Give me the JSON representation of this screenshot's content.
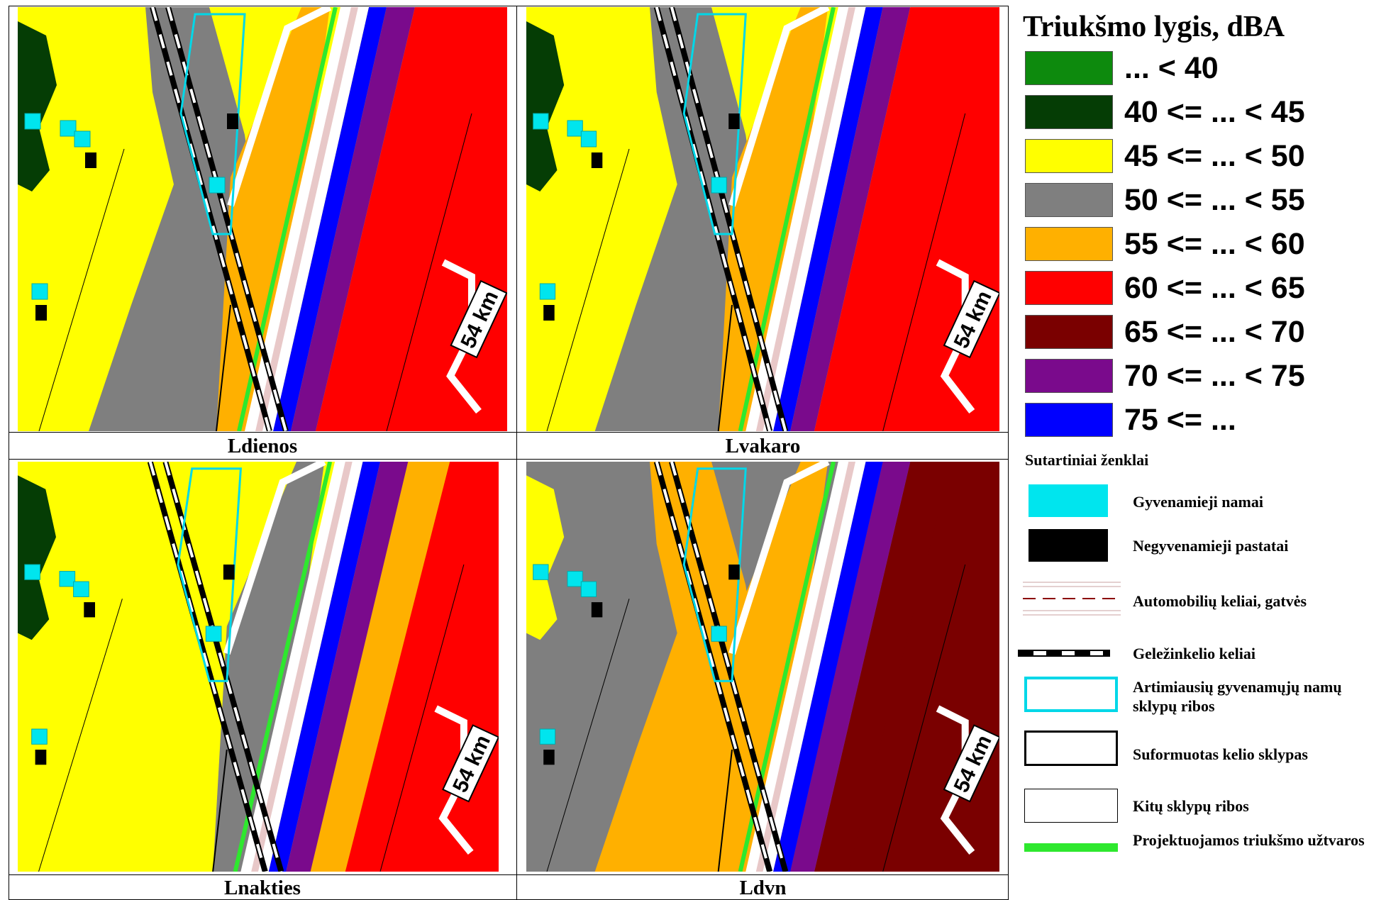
{
  "legend": {
    "title": "Triukšmo lygis, dBA",
    "classes": [
      {
        "label": " ... < 40",
        "color": "#0d8a0d"
      },
      {
        "label": "40 <= ... < 45",
        "color": "#053d05"
      },
      {
        "label": "45 <= ... < 50",
        "color": "#ffff00"
      },
      {
        "label": "50 <= ... < 55",
        "color": "#7f7f7f"
      },
      {
        "label": "55 <= ... < 60",
        "color": "#ffb000"
      },
      {
        "label": "60 <= ... < 65",
        "color": "#ff0000"
      },
      {
        "label": "65 <= ... < 70",
        "color": "#7a0000"
      },
      {
        "label": "70 <= ... < 75",
        "color": "#7a0a8c"
      },
      {
        "label": "75 <= ...",
        "color": "#0000ff"
      }
    ]
  },
  "signs": {
    "title": "Sutartiniai ženklai",
    "items": [
      {
        "label": "Gyvenamieji namai",
        "icon": "residential-house-symbol"
      },
      {
        "label": "Negyvenamieji pastatai",
        "icon": "non-residential-building-symbol"
      },
      {
        "label": "Automobilių keliai, gatvės",
        "icon": "road-symbol"
      },
      {
        "label": "Geležinkelio keliai",
        "icon": "railway-symbol"
      },
      {
        "label": "Artimiausių gyvenamųjų namų sklypų ribos",
        "icon": "residential-plot-border-symbol"
      },
      {
        "label": "Suformuotas kelio sklypas",
        "icon": "road-plot-symbol"
      },
      {
        "label": "Kitų sklypų ribos",
        "icon": "other-plot-border-symbol"
      },
      {
        "label": "Projektuojamos triukšmo užtvaros",
        "icon": "noise-barrier-symbol"
      }
    ]
  },
  "maps": [
    {
      "caption": "Ldienos",
      "km_label": "54 km",
      "scheme": "day"
    },
    {
      "caption": "Lvakaro",
      "km_label": "54 km",
      "scheme": "evening"
    },
    {
      "caption": "Lnakties",
      "km_label": "54 km",
      "scheme": "night"
    },
    {
      "caption": "Ldvn",
      "km_label": "54 km",
      "scheme": "dvn"
    }
  ]
}
